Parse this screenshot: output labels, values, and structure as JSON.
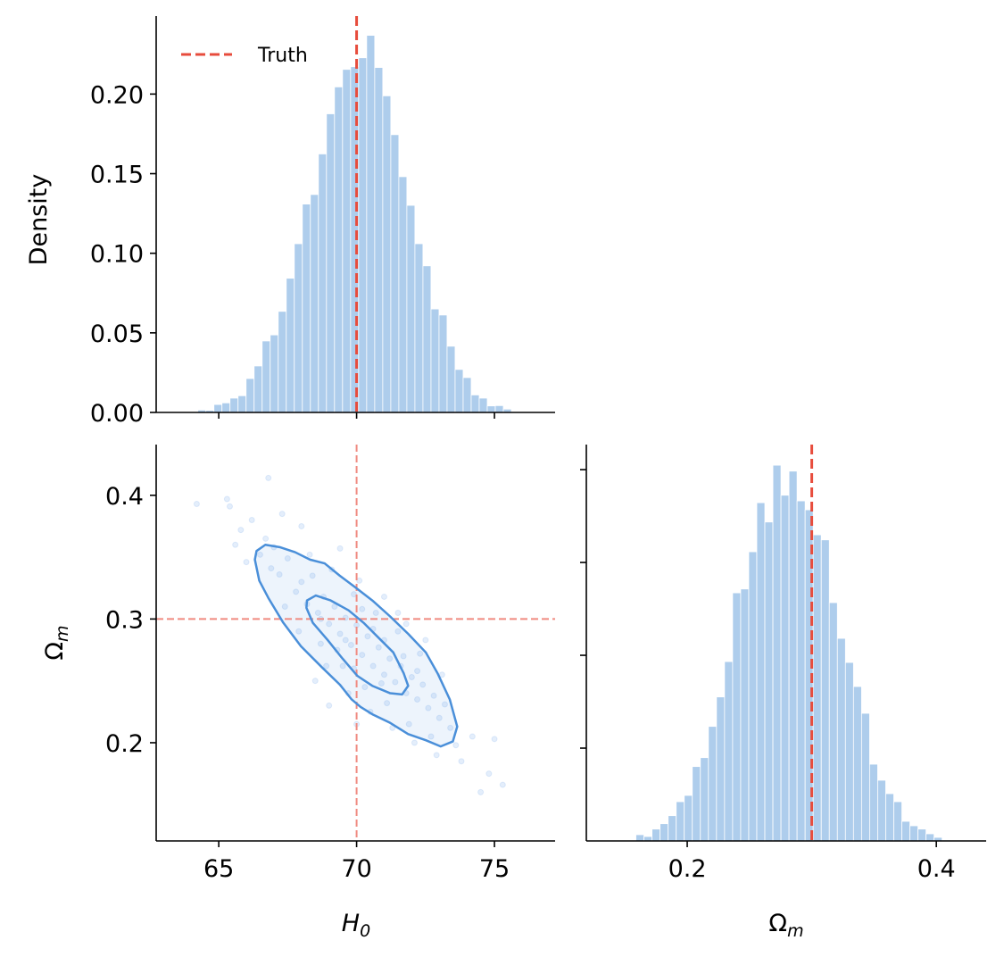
{
  "chart_data": [
    {
      "panel": "H0 marginal",
      "type": "bar",
      "subtype": "histogram",
      "ylabel": "Density",
      "xlabel": "",
      "xlim": [
        62.73,
        77.2
      ],
      "ylim": [
        0,
        0.249
      ],
      "xticks": [
        65,
        70,
        75
      ],
      "xtick_labels_shown": false,
      "yticks": [
        0.0,
        0.05,
        0.1,
        0.15,
        0.2
      ],
      "ytick_labels": [
        "0.00",
        "0.05",
        "0.10",
        "0.15",
        "0.20"
      ],
      "bin_start": 63.95,
      "bin_width": 0.2916,
      "values": [
        0.0004,
        0.0015,
        0.0013,
        0.005,
        0.006,
        0.009,
        0.0105,
        0.0213,
        0.0292,
        0.0449,
        0.0487,
        0.0635,
        0.0843,
        0.106,
        0.1309,
        0.1369,
        0.1624,
        0.1876,
        0.2045,
        0.2155,
        0.2172,
        0.2228,
        0.2369,
        0.2167,
        0.1989,
        0.1745,
        0.1481,
        0.1301,
        0.106,
        0.0921,
        0.065,
        0.0612,
        0.0416,
        0.027,
        0.0219,
        0.011,
        0.009,
        0.0041,
        0.0043,
        0.0021,
        0.0004
      ],
      "truth": 70,
      "legend": {
        "label": "Truth",
        "position": "top-left"
      },
      "grid": false
    },
    {
      "panel": "joint",
      "type": "scatter",
      "xlabel": "H_0",
      "xlabel_main": "H",
      "xlabel_sub": "0",
      "ylabel_main": "Ω",
      "ylabel_sub": "m",
      "xlim": [
        62.73,
        77.2
      ],
      "ylim": [
        0.1206,
        0.441
      ],
      "xticks": [
        65,
        70,
        75
      ],
      "xtick_labels": [
        "65",
        "70",
        "75"
      ],
      "yticks": [
        0.2,
        0.3,
        0.4
      ],
      "ytick_labels": [
        "0.2",
        "0.3",
        "0.4"
      ],
      "truth": {
        "x": 70,
        "y": 0.3
      },
      "points": [
        [
          66.5,
          0.352
        ],
        [
          66.9,
          0.341
        ],
        [
          67.2,
          0.336
        ],
        [
          67.5,
          0.349
        ],
        [
          67.8,
          0.322
        ],
        [
          68.0,
          0.33
        ],
        [
          68.2,
          0.312
        ],
        [
          68.4,
          0.335
        ],
        [
          68.6,
          0.305
        ],
        [
          68.8,
          0.318
        ],
        [
          69.0,
          0.296
        ],
        [
          69.2,
          0.31
        ],
        [
          69.4,
          0.288
        ],
        [
          69.6,
          0.301
        ],
        [
          69.8,
          0.279
        ],
        [
          70.0,
          0.295
        ],
        [
          70.2,
          0.271
        ],
        [
          70.4,
          0.286
        ],
        [
          70.6,
          0.262
        ],
        [
          70.8,
          0.277
        ],
        [
          71.0,
          0.255
        ],
        [
          71.2,
          0.268
        ],
        [
          71.4,
          0.249
        ],
        [
          71.6,
          0.262
        ],
        [
          71.8,
          0.24
        ],
        [
          72.0,
          0.253
        ],
        [
          72.2,
          0.235
        ],
        [
          72.4,
          0.247
        ],
        [
          72.6,
          0.228
        ],
        [
          72.8,
          0.238
        ],
        [
          73.0,
          0.22
        ],
        [
          73.2,
          0.231
        ],
        [
          73.4,
          0.212
        ],
        [
          66.7,
          0.365
        ],
        [
          67.0,
          0.358
        ],
        [
          67.4,
          0.31
        ],
        [
          67.9,
          0.29
        ],
        [
          68.3,
          0.352
        ],
        [
          68.7,
          0.28
        ],
        [
          69.1,
          0.34
        ],
        [
          69.5,
          0.262
        ],
        [
          69.9,
          0.32
        ],
        [
          70.3,
          0.245
        ],
        [
          70.7,
          0.305
        ],
        [
          71.1,
          0.232
        ],
        [
          71.5,
          0.29
        ],
        [
          71.9,
          0.215
        ],
        [
          72.3,
          0.272
        ],
        [
          72.7,
          0.205
        ],
        [
          73.1,
          0.255
        ],
        [
          73.6,
          0.198
        ],
        [
          65.8,
          0.372
        ],
        [
          66.2,
          0.38
        ],
        [
          65.6,
          0.36
        ],
        [
          66.0,
          0.346
        ],
        [
          68.9,
          0.262
        ],
        [
          69.7,
          0.24
        ],
        [
          70.5,
          0.225
        ],
        [
          71.3,
          0.212
        ],
        [
          72.1,
          0.2
        ],
        [
          72.9,
          0.19
        ],
        [
          73.8,
          0.185
        ],
        [
          74.2,
          0.205
        ],
        [
          70.1,
          0.331
        ],
        [
          71.0,
          0.318
        ],
        [
          71.8,
          0.296
        ],
        [
          72.5,
          0.283
        ],
        [
          68.0,
          0.375
        ],
        [
          67.3,
          0.385
        ],
        [
          69.4,
          0.357
        ],
        [
          64.2,
          0.393
        ],
        [
          65.3,
          0.397
        ],
        [
          65.4,
          0.391
        ],
        [
          66.8,
          0.414
        ],
        [
          74.5,
          0.16
        ],
        [
          75.3,
          0.166
        ],
        [
          75.0,
          0.203
        ],
        [
          74.8,
          0.175
        ],
        [
          70.0,
          0.215
        ],
        [
          69.0,
          0.23
        ],
        [
          68.5,
          0.25
        ],
        [
          71.5,
          0.305
        ],
        [
          70.9,
          0.248
        ],
        [
          69.3,
          0.275
        ],
        [
          70.6,
          0.292
        ],
        [
          71.7,
          0.27
        ],
        [
          69.9,
          0.26
        ],
        [
          68.7,
          0.3
        ],
        [
          70.2,
          0.308
        ],
        [
          71.0,
          0.283
        ],
        [
          69.6,
          0.283
        ],
        [
          72.2,
          0.258
        ]
      ],
      "contours": [
        {
          "level": "outer",
          "path": [
            [
              66.37,
              0.355
            ],
            [
              66.69,
              0.36
            ],
            [
              67.23,
              0.358
            ],
            [
              67.77,
              0.354
            ],
            [
              68.31,
              0.348
            ],
            [
              68.84,
              0.345
            ],
            [
              69.39,
              0.335
            ],
            [
              69.93,
              0.326
            ],
            [
              70.57,
              0.315
            ],
            [
              71.22,
              0.302
            ],
            [
              71.87,
              0.288
            ],
            [
              72.51,
              0.273
            ],
            [
              72.94,
              0.256
            ],
            [
              73.38,
              0.235
            ],
            [
              73.65,
              0.213
            ],
            [
              73.49,
              0.201
            ],
            [
              73.05,
              0.197
            ],
            [
              72.51,
              0.202
            ],
            [
              71.87,
              0.207
            ],
            [
              71.22,
              0.216
            ],
            [
              70.57,
              0.223
            ],
            [
              70.14,
              0.229
            ],
            [
              69.82,
              0.235
            ],
            [
              69.39,
              0.247
            ],
            [
              68.74,
              0.261
            ],
            [
              67.98,
              0.278
            ],
            [
              67.34,
              0.297
            ],
            [
              66.8,
              0.317
            ],
            [
              66.47,
              0.331
            ],
            [
              66.31,
              0.348
            ]
          ]
        },
        {
          "level": "inner",
          "path": [
            [
              68.2,
              0.315
            ],
            [
              68.52,
              0.319
            ],
            [
              69.06,
              0.315
            ],
            [
              69.71,
              0.307
            ],
            [
              70.25,
              0.297
            ],
            [
              70.79,
              0.285
            ],
            [
              71.33,
              0.273
            ],
            [
              71.71,
              0.256
            ],
            [
              71.87,
              0.246
            ],
            [
              71.65,
              0.239
            ],
            [
              71.22,
              0.24
            ],
            [
              70.57,
              0.246
            ],
            [
              70.03,
              0.254
            ],
            [
              69.49,
              0.268
            ],
            [
              68.95,
              0.283
            ],
            [
              68.41,
              0.297
            ],
            [
              68.18,
              0.309
            ]
          ]
        }
      ],
      "grid": false
    },
    {
      "panel": "Omega_m marginal",
      "type": "bar",
      "subtype": "histogram",
      "xlabel_main": "Ω",
      "xlabel_sub": "m",
      "xlim": [
        0.119,
        0.44
      ],
      "ylim": [
        0,
        8.54
      ],
      "xticks": [
        0.2,
        0.4
      ],
      "xtick_labels": [
        "0.2",
        "0.4"
      ],
      "yticks": [
        2,
        4,
        6,
        8
      ],
      "ytick_labels_shown": false,
      "bin_start": 0.1588,
      "bin_width": 0.00647,
      "values": [
        0.135,
        0.096,
        0.256,
        0.372,
        0.545,
        0.846,
        0.981,
        1.603,
        1.795,
        2.468,
        3.103,
        3.865,
        5.346,
        5.429,
        6.231,
        7.288,
        6.872,
        8.096,
        7.449,
        7.968,
        7.327,
        7.135,
        6.596,
        6.487,
        5.135,
        4.365,
        3.846,
        3.327,
        2.75,
        1.654,
        1.308,
        1.019,
        0.846,
        0.423,
        0.327,
        0.256,
        0.154,
        0.077,
        0.019
      ],
      "truth": 0.3,
      "grid": false
    }
  ],
  "colors": {
    "bar": "#aecdec",
    "truth": "#e74c3c",
    "truth_light": "#f08a80",
    "contour": "#4a8fd9",
    "scatter": "#4a90e2"
  }
}
